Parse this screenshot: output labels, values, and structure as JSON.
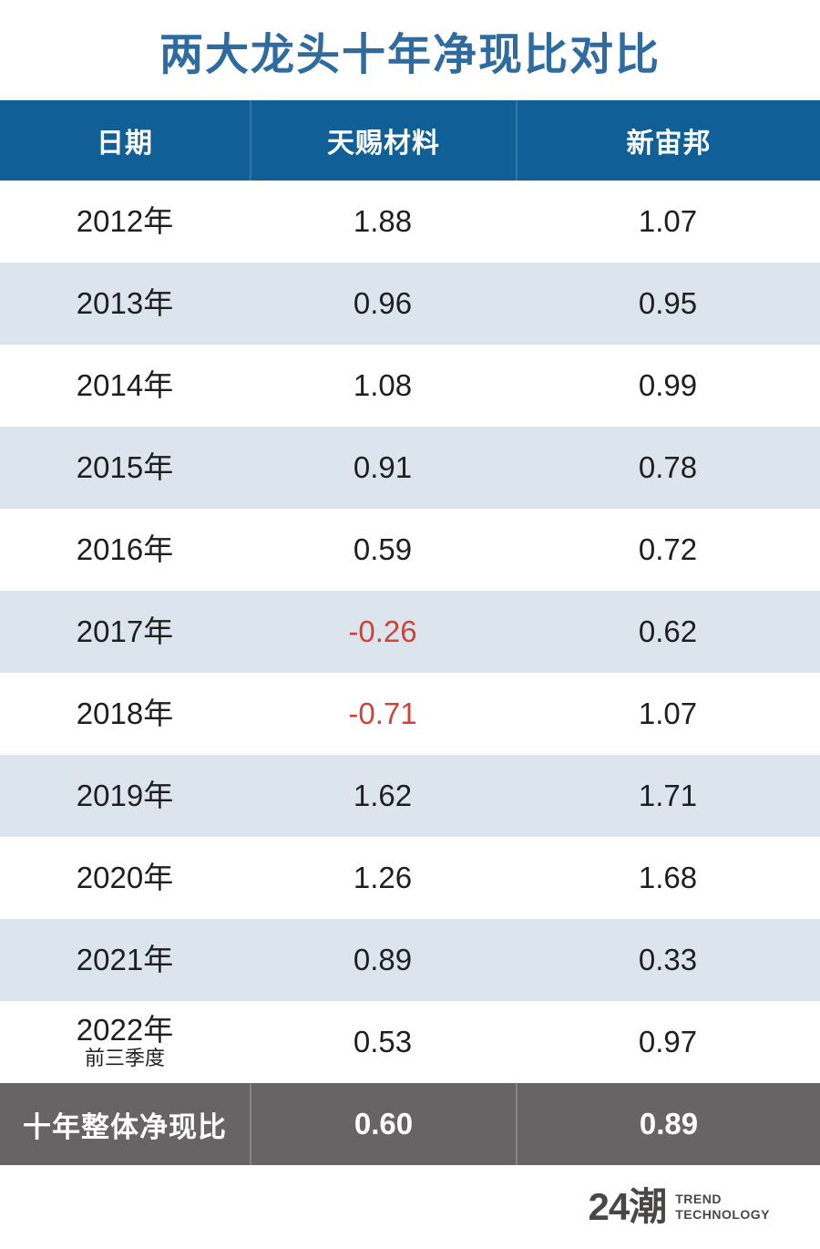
{
  "title": "两大龙头十年净现比对比",
  "header": {
    "col_date": "日期",
    "col_tinci": "天赐材料",
    "col_capchem": "新宙邦"
  },
  "rows": [
    {
      "date": "2012年",
      "sub": "",
      "v1": "1.88",
      "v2": "1.07"
    },
    {
      "date": "2013年",
      "sub": "",
      "v1": "0.96",
      "v2": "0.95"
    },
    {
      "date": "2014年",
      "sub": "",
      "v1": "1.08",
      "v2": "0.99"
    },
    {
      "date": "2015年",
      "sub": "",
      "v1": "0.91",
      "v2": "0.78"
    },
    {
      "date": "2016年",
      "sub": "",
      "v1": "0.59",
      "v2": "0.72"
    },
    {
      "date": "2017年",
      "sub": "",
      "v1": "-0.26",
      "v2": "0.62"
    },
    {
      "date": "2018年",
      "sub": "",
      "v1": "-0.71",
      "v2": "1.07"
    },
    {
      "date": "2019年",
      "sub": "",
      "v1": "1.62",
      "v2": "1.71"
    },
    {
      "date": "2020年",
      "sub": "",
      "v1": "1.26",
      "v2": "1.68"
    },
    {
      "date": "2021年",
      "sub": "",
      "v1": "0.89",
      "v2": "0.33"
    },
    {
      "date": "2022年",
      "sub": "前三季度",
      "v1": "0.53",
      "v2": "0.97"
    }
  ],
  "footer": {
    "label": "十年整体净现比",
    "v1": "0.60",
    "v2": "0.89"
  },
  "logo": {
    "mark": "24潮",
    "line1": "TREND",
    "line2": "TECHNOLOGY"
  },
  "colors": {
    "title_blue": "#2e6b9f",
    "header_bg": "#115f97",
    "row_alt_bg": "#dce4ed",
    "footer_bg": "#676465",
    "negative_red": "#cf4437",
    "logo_gray": "#4a4747"
  },
  "chart_data": {
    "type": "table",
    "title": "两大龙头十年净现比对比",
    "categories": [
      "2012年",
      "2013年",
      "2014年",
      "2015年",
      "2016年",
      "2017年",
      "2018年",
      "2019年",
      "2020年",
      "2021年",
      "2022年前三季度"
    ],
    "series": [
      {
        "name": "天赐材料",
        "values": [
          1.88,
          0.96,
          1.08,
          0.91,
          0.59,
          -0.26,
          -0.71,
          1.62,
          1.26,
          0.89,
          0.53
        ],
        "overall_ten_year": 0.6
      },
      {
        "name": "新宙邦",
        "values": [
          1.07,
          0.95,
          0.99,
          0.78,
          0.72,
          0.62,
          1.07,
          1.71,
          1.68,
          0.33,
          0.97
        ],
        "overall_ten_year": 0.89
      }
    ],
    "footer_label": "十年整体净现比",
    "layout": {
      "alternating_rows": true,
      "negative_values_red": true
    }
  }
}
